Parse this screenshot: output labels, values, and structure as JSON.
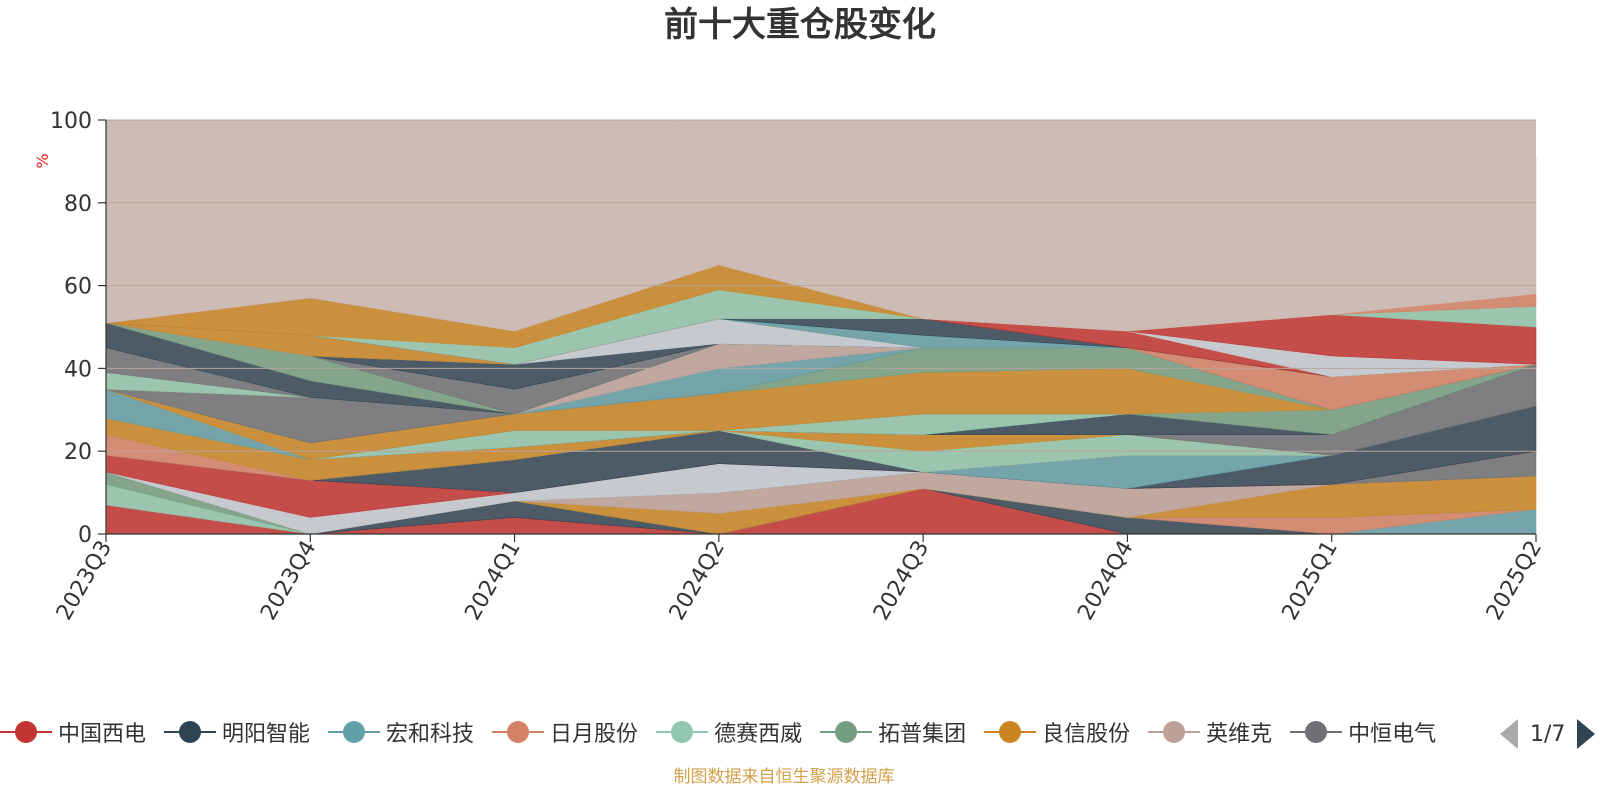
{
  "title": "前十大重仓股变化",
  "ylabel": "%",
  "source_note": "制图数据来自恒生聚源数据库",
  "legend_pager": "1/7",
  "chart_data": {
    "type": "area",
    "stacked": true,
    "x": [
      "2023Q3",
      "2023Q4",
      "2024Q1",
      "2024Q2",
      "2024Q3",
      "2024Q4",
      "2025Q1",
      "2025Q2"
    ],
    "ylim": [
      0,
      100
    ],
    "yticks": [
      0,
      20,
      40,
      60,
      80,
      100
    ],
    "ylabel": "%",
    "grid": true,
    "background_color": "#cdbbb5",
    "series": [
      {
        "name": "中国西电",
        "color": "#c23531",
        "values": [
          7,
          0,
          4,
          0,
          11,
          0,
          0,
          0
        ]
      },
      {
        "name": "明阳智能",
        "color": "#2f4554",
        "values": [
          0,
          0,
          4,
          0,
          0,
          4,
          0,
          0
        ]
      },
      {
        "name": "宏和科技",
        "color": "#61a0a8",
        "values": [
          0,
          0,
          0,
          0,
          0,
          0,
          0,
          6
        ]
      },
      {
        "name": "日月股份",
        "color": "#d48265",
        "values": [
          0,
          0,
          0,
          0,
          0,
          0,
          4,
          0
        ]
      },
      {
        "name": "德赛西威",
        "color": "#91c7ae",
        "values": [
          5,
          0,
          0,
          0,
          0,
          0,
          0,
          0
        ]
      },
      {
        "name": "拓普集团",
        "color": "#749f83",
        "values": [
          3,
          0,
          0,
          0,
          0,
          0,
          0,
          0
        ]
      },
      {
        "name": "良信股份",
        "color": "#ca8622",
        "values": [
          0,
          0,
          0,
          5,
          0,
          0,
          8,
          8
        ]
      },
      {
        "name": "英维克",
        "color": "#bda29a",
        "values": [
          0,
          0,
          0,
          5,
          4,
          7,
          0,
          0
        ]
      },
      {
        "name": "中恒电气",
        "color": "#6e7074",
        "values": [
          0,
          0,
          0,
          0,
          0,
          0,
          0,
          6
        ]
      },
      {
        "name": "",
        "color": "#c4ccd3",
        "values": [
          0,
          4,
          2,
          7,
          0,
          0,
          0,
          0
        ]
      },
      {
        "name": "",
        "color": "#c23531",
        "values": [
          4,
          9,
          0,
          0,
          0,
          0,
          0,
          0
        ]
      },
      {
        "name": "",
        "color": "#2f4554",
        "values": [
          0,
          0,
          8,
          8,
          0,
          0,
          7,
          11
        ]
      },
      {
        "name": "",
        "color": "#61a0a8",
        "values": [
          0,
          0,
          0,
          0,
          0,
          8,
          0,
          0
        ]
      },
      {
        "name": "",
        "color": "#d48265",
        "values": [
          5,
          0,
          0,
          0,
          0,
          0,
          0,
          0
        ]
      },
      {
        "name": "",
        "color": "#91c7ae",
        "values": [
          0,
          0,
          0,
          0,
          5,
          5,
          0,
          0
        ]
      },
      {
        "name": "",
        "color": "#ca8622",
        "values": [
          4,
          5,
          3,
          0,
          4,
          0,
          0,
          0
        ]
      },
      {
        "name": "",
        "color": "#bda29a",
        "values": [
          0,
          0,
          0,
          0,
          0,
          0,
          0,
          0
        ]
      },
      {
        "name": "",
        "color": "#6e7074",
        "values": [
          0,
          0,
          0,
          0,
          0,
          0,
          5,
          10
        ]
      },
      {
        "name": "",
        "color": "#2f4554",
        "values": [
          0,
          0,
          0,
          0,
          0,
          5,
          0,
          0
        ]
      },
      {
        "name": "",
        "color": "#749f83",
        "values": [
          0,
          0,
          0,
          0,
          0,
          0,
          6,
          0
        ]
      },
      {
        "name": "",
        "color": "#91c7ae",
        "values": [
          0,
          0,
          4,
          0,
          5,
          0,
          0,
          0
        ]
      },
      {
        "name": "",
        "color": "#61a0a8",
        "values": [
          7,
          0,
          0,
          0,
          0,
          0,
          0,
          0
        ]
      },
      {
        "name": "",
        "color": "#ca8622",
        "values": [
          0,
          4,
          4,
          9,
          10,
          11,
          0,
          0
        ]
      },
      {
        "name": "",
        "color": "#749f83",
        "values": [
          0,
          0,
          0,
          0,
          6,
          5,
          0,
          0
        ]
      },
      {
        "name": "",
        "color": "#6e7074",
        "values": [
          0,
          11,
          0,
          0,
          0,
          0,
          0,
          0
        ]
      },
      {
        "name": "",
        "color": "#d48265",
        "values": [
          0,
          0,
          0,
          0,
          0,
          0,
          8,
          0
        ]
      },
      {
        "name": "",
        "color": "#91c7ae",
        "values": [
          4,
          0,
          0,
          0,
          0,
          0,
          0,
          0
        ]
      },
      {
        "name": "",
        "color": "#6e7074",
        "values": [
          6,
          0,
          0,
          0,
          0,
          0,
          0,
          0
        ]
      },
      {
        "name": "",
        "color": "#61a0a8",
        "values": [
          0,
          0,
          0,
          6,
          0,
          0,
          0,
          0
        ]
      },
      {
        "name": "",
        "color": "#bda29a",
        "values": [
          0,
          0,
          0,
          6,
          0,
          0,
          0,
          0
        ]
      },
      {
        "name": "",
        "color": "#2f4554",
        "values": [
          6,
          4,
          0,
          0,
          0,
          0,
          0,
          0
        ]
      },
      {
        "name": "",
        "color": "#749f83",
        "values": [
          0,
          6,
          0,
          0,
          0,
          0,
          0,
          0
        ]
      },
      {
        "name": "",
        "color": "#91c7ae",
        "values": [
          0,
          0,
          0,
          0,
          0,
          0,
          0,
          0
        ]
      },
      {
        "name": "",
        "color": "#6e7074",
        "values": [
          0,
          0,
          6,
          0,
          0,
          0,
          0,
          0
        ]
      },
      {
        "name": "",
        "color": "#2f4554",
        "values": [
          0,
          0,
          6,
          0,
          0,
          0,
          0,
          0
        ]
      },
      {
        "name": "",
        "color": "#c4ccd3",
        "values": [
          0,
          0,
          0,
          6,
          0,
          0,
          0,
          0
        ]
      },
      {
        "name": "",
        "color": "#ca8622",
        "values": [
          0,
          5,
          0,
          0,
          0,
          0,
          0,
          0
        ]
      },
      {
        "name": "",
        "color": "#61a0a8",
        "values": [
          0,
          0,
          0,
          0,
          3,
          0,
          0,
          0
        ]
      },
      {
        "name": "",
        "color": "#2f4554",
        "values": [
          0,
          0,
          0,
          0,
          4,
          0,
          0,
          0
        ]
      },
      {
        "name": "",
        "color": "#c23531",
        "values": [
          0,
          0,
          0,
          0,
          0,
          4,
          0,
          0
        ]
      },
      {
        "name": "",
        "color": "#91c7ae",
        "values": [
          0,
          0,
          4,
          7,
          0,
          0,
          0,
          0
        ]
      },
      {
        "name": "",
        "color": "#ca8622",
        "values": [
          0,
          9,
          4,
          6,
          0,
          0,
          0,
          0
        ]
      },
      {
        "name": "",
        "color": "#c4ccd3",
        "values": [
          0,
          0,
          0,
          0,
          0,
          0,
          5,
          0
        ]
      },
      {
        "name": "",
        "color": "#c23531",
        "values": [
          0,
          0,
          0,
          0,
          0,
          0,
          10,
          9
        ]
      },
      {
        "name": "",
        "color": "#91c7ae",
        "values": [
          0,
          0,
          0,
          0,
          0,
          0,
          0,
          5
        ]
      },
      {
        "name": "",
        "color": "#d48265",
        "values": [
          0,
          0,
          0,
          0,
          0,
          0,
          0,
          3
        ]
      },
      {
        "name": "",
        "color": "#cdbbb5",
        "values": [
          47,
          35,
          48,
          34,
          41,
          43,
          34,
          33
        ]
      }
    ],
    "legend": {
      "position": "bottom",
      "items": [
        {
          "name": "中国西电",
          "color": "#c23531"
        },
        {
          "name": "明阳智能",
          "color": "#2f4554"
        },
        {
          "name": "宏和科技",
          "color": "#61a0a8"
        },
        {
          "name": "日月股份",
          "color": "#d48265"
        },
        {
          "name": "德赛西威",
          "color": "#91c7ae"
        },
        {
          "name": "拓普集团",
          "color": "#749f83"
        },
        {
          "name": "良信股份",
          "color": "#ca8622"
        },
        {
          "name": "英维克",
          "color": "#bda29a"
        },
        {
          "name": "中恒电气",
          "color": "#6e7074"
        }
      ]
    }
  }
}
